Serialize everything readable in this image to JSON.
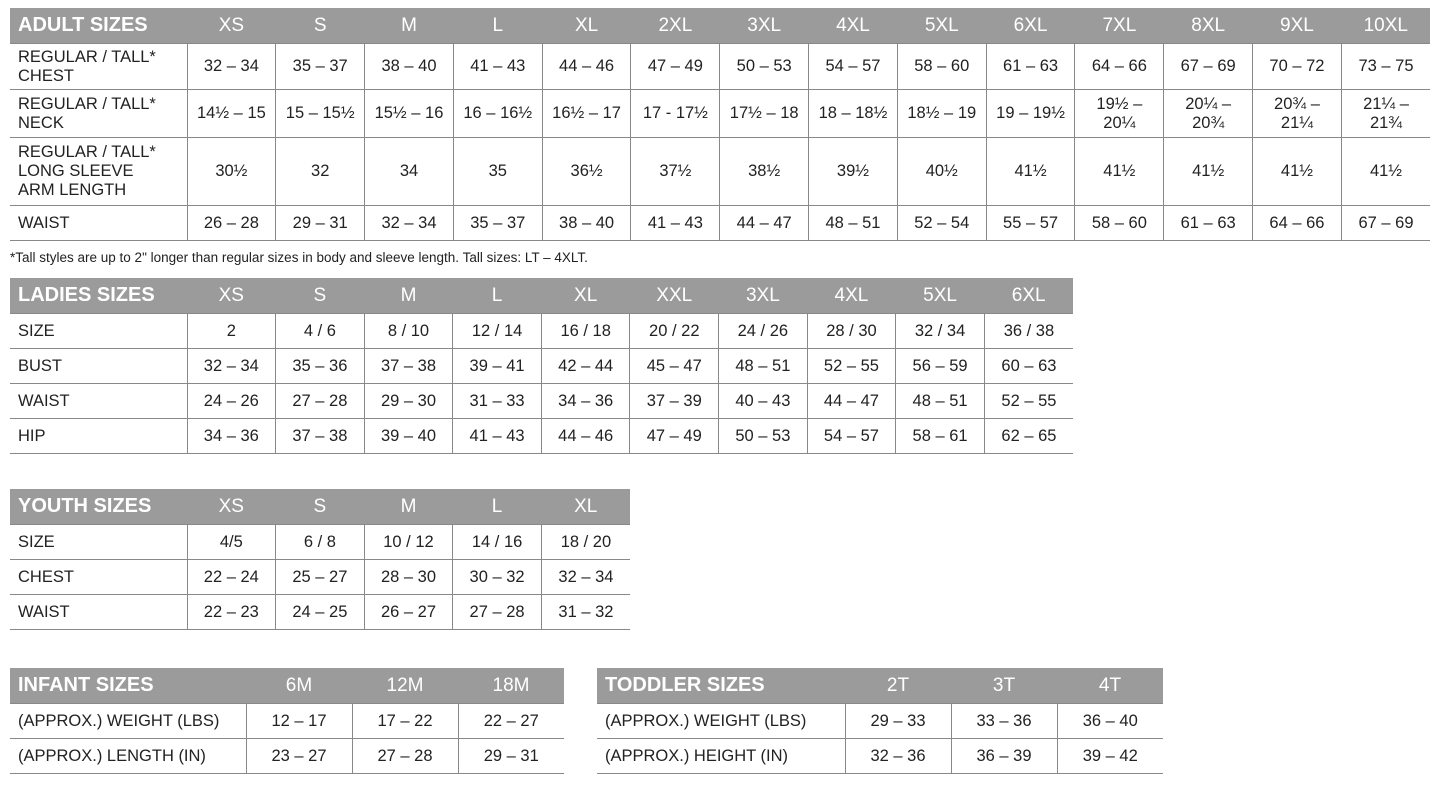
{
  "adult": {
    "title": "ADULT SIZES",
    "sizes": [
      "XS",
      "S",
      "M",
      "L",
      "XL",
      "2XL",
      "3XL",
      "4XL",
      "5XL",
      "6XL",
      "7XL",
      "8XL",
      "9XL",
      "10XL"
    ],
    "rows": [
      {
        "label": "REGULAR / TALL*\nCHEST",
        "values": [
          "32 – 34",
          "35 – 37",
          "38 – 40",
          "41 – 43",
          "44 – 46",
          "47 – 49",
          "50 – 53",
          "54 – 57",
          "58 – 60",
          "61 – 63",
          "64 – 66",
          "67 – 69",
          "70 – 72",
          "73 – 75"
        ]
      },
      {
        "label": "REGULAR / TALL*\nNECK",
        "values": [
          "14½ – 15",
          "15 – 15½",
          "15½ – 16",
          "16 – 16½",
          "16½ – 17",
          "17 - 17½",
          "17½ – 18",
          "18 – 18½",
          "18½ – 19",
          "19 – 19½",
          "19½ –\n20¼",
          "20¼ –\n20¾",
          "20¾ –\n21¼",
          "21¼ –\n21¾"
        ]
      },
      {
        "label": "REGULAR / TALL*\nLONG SLEEVE\nARM LENGTH",
        "values": [
          "30½",
          "32",
          "34",
          "35",
          "36½",
          "37½",
          "38½",
          "39½",
          "40½",
          "41½",
          "41½",
          "41½",
          "41½",
          "41½"
        ]
      },
      {
        "label": "WAIST",
        "values": [
          "26 – 28",
          "29 – 31",
          "32 – 34",
          "35 – 37",
          "38 – 40",
          "41 – 43",
          "44 – 47",
          "48 – 51",
          "52 – 54",
          "55 – 57",
          "58 – 60",
          "61 – 63",
          "64 – 66",
          "67 – 69"
        ]
      }
    ],
    "footnote": "*Tall styles are up to 2\" longer than regular sizes in body and sleeve length. Tall sizes: LT – 4XLT."
  },
  "ladies": {
    "title": "LADIES SIZES",
    "sizes": [
      "XS",
      "S",
      "M",
      "L",
      "XL",
      "XXL",
      "3XL",
      "4XL",
      "5XL",
      "6XL"
    ],
    "rows": [
      {
        "label": "SIZE",
        "values": [
          "2",
          "4 / 6",
          "8 / 10",
          "12 / 14",
          "16 / 18",
          "20 / 22",
          "24 / 26",
          "28 / 30",
          "32 / 34",
          "36 / 38"
        ]
      },
      {
        "label": "BUST",
        "values": [
          "32 – 34",
          "35 – 36",
          "37 – 38",
          "39 – 41",
          "42 – 44",
          "45 – 47",
          "48 – 51",
          "52 – 55",
          "56 – 59",
          "60 – 63"
        ]
      },
      {
        "label": "WAIST",
        "values": [
          "24 – 26",
          "27 – 28",
          "29 – 30",
          "31 – 33",
          "34 – 36",
          "37 – 39",
          "40 – 43",
          "44 – 47",
          "48 – 51",
          "52 – 55"
        ]
      },
      {
        "label": "HIP",
        "values": [
          "34 – 36",
          "37 – 38",
          "39 – 40",
          "41 – 43",
          "44 – 46",
          "47 – 49",
          "50 – 53",
          "54 – 57",
          "58 – 61",
          "62 – 65"
        ]
      }
    ]
  },
  "youth": {
    "title": "YOUTH SIZES",
    "sizes": [
      "XS",
      "S",
      "M",
      "L",
      "XL"
    ],
    "rows": [
      {
        "label": "SIZE",
        "values": [
          "4/5",
          "6 / 8",
          "10 / 12",
          "14 / 16",
          "18 / 20"
        ]
      },
      {
        "label": "CHEST",
        "values": [
          "22 – 24",
          "25 – 27",
          "28 – 30",
          "30 – 32",
          "32 – 34"
        ]
      },
      {
        "label": "WAIST",
        "values": [
          "22 – 23",
          "24 – 25",
          "26 – 27",
          "27 – 28",
          "31 – 32"
        ]
      }
    ]
  },
  "infant": {
    "title": "INFANT SIZES",
    "sizes": [
      "6M",
      "12M",
      "18M"
    ],
    "rows": [
      {
        "label": "(APPROX.) WEIGHT (LBS)",
        "values": [
          "12 – 17",
          "17 – 22",
          "22 – 27"
        ]
      },
      {
        "label": "(APPROX.) LENGTH (IN)",
        "values": [
          "23 – 27",
          "27 – 28",
          "29 – 31"
        ]
      }
    ]
  },
  "toddler": {
    "title": "TODDLER SIZES",
    "sizes": [
      "2T",
      "3T",
      "4T"
    ],
    "rows": [
      {
        "label": "(APPROX.) WEIGHT (LBS)",
        "values": [
          "29 – 33",
          "33 – 36",
          "36 – 40"
        ]
      },
      {
        "label": "(APPROX.) HEIGHT (IN)",
        "values": [
          "32 – 36",
          "36 – 39",
          "39 – 42"
        ]
      }
    ]
  }
}
